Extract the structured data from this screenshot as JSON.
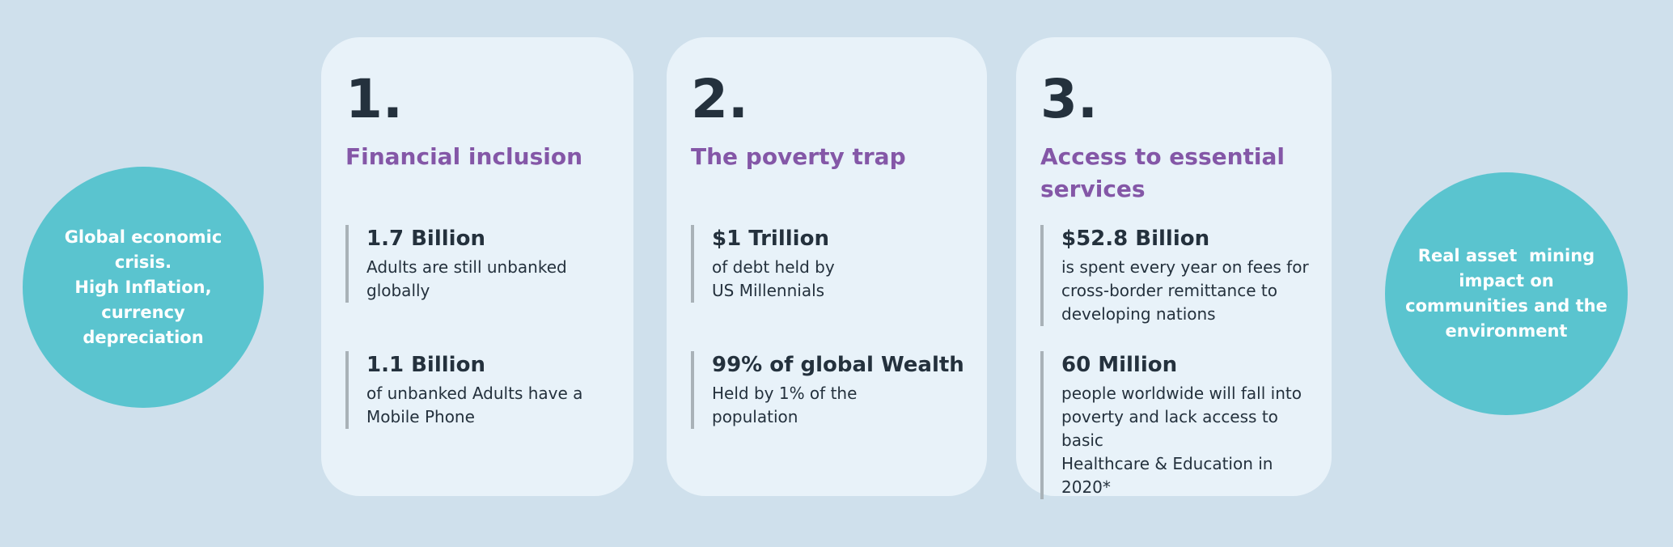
{
  "colors": {
    "page_bg": "#cfe0ec",
    "card_bg": "#e8f2f9",
    "circle_teal": "#5ac4cf",
    "title_purple": "#8457a7",
    "text_dark": "#24313d",
    "bar_gray": "#a9b2b8"
  },
  "left_circle": {
    "text": "Global economic\ncrisis.\nHigh Inflation,\ncurrency\ndepreciation"
  },
  "right_circle": {
    "text": "Real asset  mining\nimpact on\ncommunities and the\nenvironment"
  },
  "cards": [
    {
      "number": "1.",
      "title": "Financial inclusion",
      "stats": [
        {
          "value": "1.7 Billion",
          "description": "Adults are still unbanked\nglobally"
        },
        {
          "value": "1.1 Billion",
          "description": "of unbanked Adults have a\nMobile Phone"
        }
      ]
    },
    {
      "number": "2.",
      "title": "The poverty trap",
      "stats": [
        {
          "value": "$1 Trillion",
          "description": "of debt held by\nUS Millennials"
        },
        {
          "value": "99% of global Wealth",
          "description": "Held by 1% of the\npopulation"
        }
      ]
    },
    {
      "number": "3.",
      "title": "Access to essential\nservices",
      "stats": [
        {
          "value": "$52.8 Billion",
          "description": "is spent every year on fees for\ncross-border remittance to\ndeveloping nations"
        },
        {
          "value": "60 Million",
          "description": "people worldwide will fall into\npoverty and lack access to basic\nHealthcare & Education in 2020*"
        }
      ]
    }
  ]
}
